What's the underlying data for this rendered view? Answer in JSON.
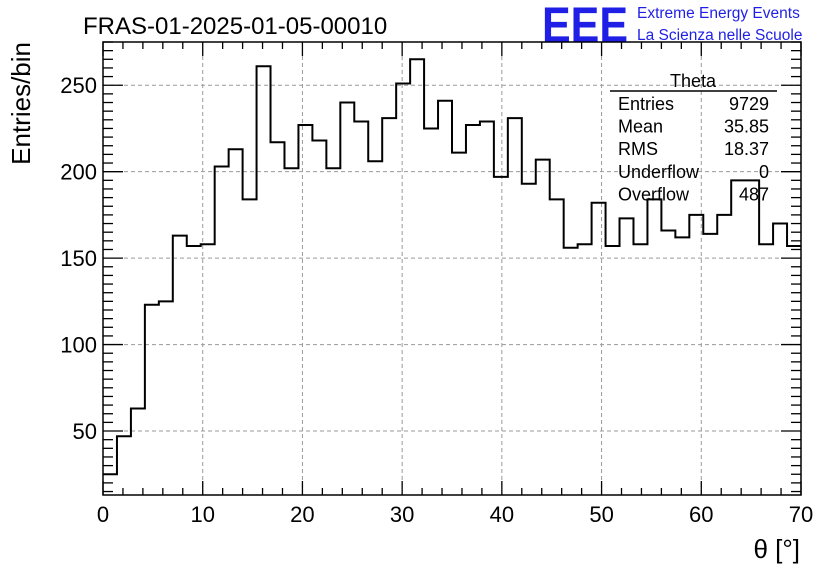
{
  "header": {
    "title": "FRAS-01-2025-01-05-00010",
    "logo_text": "EEE",
    "logo_line1": "Extreme Energy Events",
    "logo_line2": "La Scienza nelle Scuole",
    "logo_color": "#1f1fe6"
  },
  "stats_box": {
    "name": "Theta",
    "rows": [
      {
        "label": "Entries",
        "value": "9729"
      },
      {
        "label": "Mean",
        "value": "35.85"
      },
      {
        "label": "RMS",
        "value": "18.37"
      },
      {
        "label": "Underflow",
        "value": "0"
      },
      {
        "label": "Overflow",
        "value": "487"
      }
    ]
  },
  "chart_data": {
    "type": "bar",
    "histogram": true,
    "xlabel": "θ [°]",
    "ylabel": "Entries/bin",
    "xlim": [
      0,
      70
    ],
    "ylim": [
      13,
      275
    ],
    "grid": true,
    "x_ticks": [
      0,
      10,
      20,
      30,
      40,
      50,
      60,
      70
    ],
    "y_ticks": [
      50,
      100,
      150,
      200,
      250
    ],
    "bin_width": 1.4,
    "bin_edges_start": 0,
    "values": [
      25,
      47,
      63,
      123,
      125,
      163,
      157,
      158,
      203,
      213,
      184,
      261,
      217,
      202,
      227,
      218,
      202,
      240,
      229,
      206,
      231,
      251,
      265,
      225,
      241,
      211,
      227,
      229,
      197,
      231,
      193,
      207,
      184,
      156,
      158,
      182,
      157,
      173,
      158,
      184,
      166,
      162,
      175,
      164,
      175,
      195,
      195,
      158,
      170,
      157
    ]
  }
}
